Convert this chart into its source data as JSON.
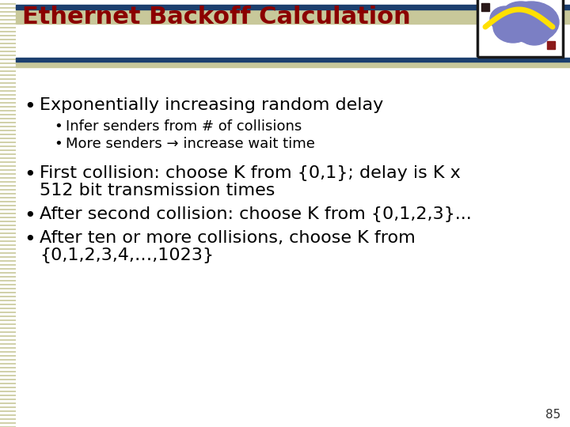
{
  "title": "Ethernet Backoff Calculation",
  "title_color": "#8B0000",
  "title_fontsize": 22,
  "background_color": "#FFFFFF",
  "left_stripe_color": "#C8C89A",
  "top_bar_color": "#1C3F6E",
  "divider_color": "#1C3F6E",
  "tan_bar_color": "#C8C89A",
  "bullet1": "Exponentially increasing random delay",
  "sub_bullet1": "Infer senders from # of collisions",
  "sub_bullet2": "More senders → increase wait time",
  "bullet2_line1": "First collision: choose K from {0,1}; delay is K x",
  "bullet2_line2": "512 bit transmission times",
  "bullet3": "After second collision: choose K from {0,1,2,3}...",
  "bullet4_line1": "After ten or more collisions, choose K from",
  "bullet4_line2": "{0,1,2,3,4,…,1023}",
  "page_number": "85",
  "main_fontsize": 16,
  "sub_fontsize": 13,
  "font_family": "DejaVu Sans"
}
